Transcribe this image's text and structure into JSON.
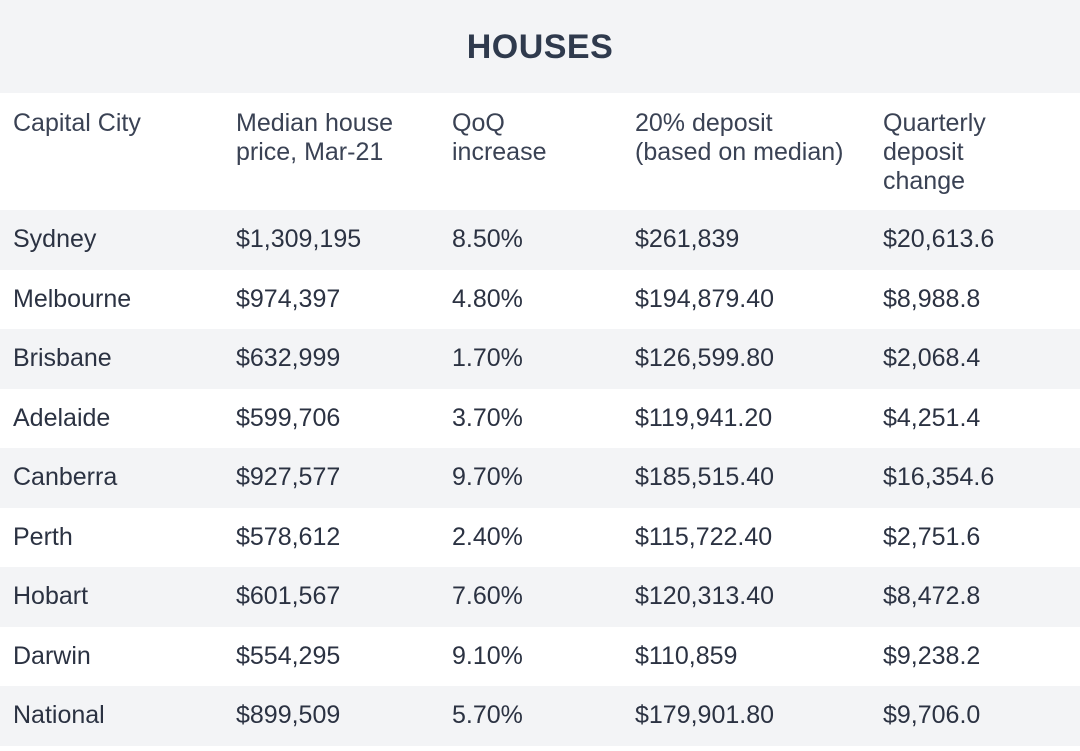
{
  "title": "HOUSES",
  "headers": [
    [
      "Capital City"
    ],
    [
      "Median house",
      "price, Mar-21"
    ],
    [
      "QoQ",
      "increase"
    ],
    [
      "20% deposit",
      "(based on median)"
    ],
    [
      "Quarterly",
      "deposit",
      "change"
    ]
  ],
  "rows": [
    [
      "Sydney",
      "$1,309,195",
      "8.50%",
      "$261,839",
      "$20,613.6"
    ],
    [
      "Melbourne",
      "$974,397",
      "4.80%",
      "$194,879.40",
      "$8,988.8"
    ],
    [
      "Brisbane",
      "$632,999",
      "1.70%",
      "$126,599.80",
      "$2,068.4"
    ],
    [
      "Adelaide",
      "$599,706",
      "3.70%",
      "$119,941.20",
      "$4,251.4"
    ],
    [
      "Canberra",
      "$927,577",
      "9.70%",
      "$185,515.40",
      "$16,354.6"
    ],
    [
      "Perth",
      "$578,612",
      "2.40%",
      "$115,722.40",
      "$2,751.6"
    ],
    [
      "Hobart",
      "$601,567",
      "7.60%",
      "$120,313.40",
      "$8,472.8"
    ],
    [
      "Darwin",
      "$554,295",
      "9.10%",
      "$110,859",
      "$9,238.2"
    ],
    [
      "National",
      "$899,509",
      "5.70%",
      "$179,901.80",
      "$9,706.0"
    ]
  ],
  "colors": {
    "shade": "#f3f4f6",
    "text": "#2b3242",
    "title": "#2f3a4d"
  }
}
